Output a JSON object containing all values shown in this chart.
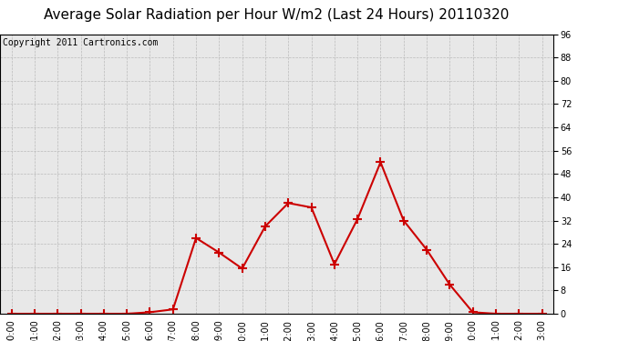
{
  "title": "Average Solar Radiation per Hour W/m2 (Last 24 Hours) 20110320",
  "copyright_text": "Copyright 2011 Cartronics.com",
  "hours": [
    "00:00",
    "01:00",
    "02:00",
    "03:00",
    "04:00",
    "05:00",
    "06:00",
    "07:00",
    "08:00",
    "09:00",
    "10:00",
    "11:00",
    "12:00",
    "13:00",
    "14:00",
    "15:00",
    "16:00",
    "17:00",
    "18:00",
    "19:00",
    "20:00",
    "21:00",
    "22:00",
    "23:00"
  ],
  "values": [
    0.0,
    0.0,
    0.0,
    0.0,
    0.0,
    0.0,
    0.5,
    1.5,
    26.0,
    21.0,
    15.5,
    30.0,
    38.0,
    36.5,
    17.0,
    32.5,
    52.0,
    32.0,
    22.0,
    10.0,
    0.5,
    0.0,
    0.0,
    0.0
  ],
  "ylim": [
    0.0,
    96.0
  ],
  "yticks": [
    0.0,
    8.0,
    16.0,
    24.0,
    32.0,
    40.0,
    48.0,
    56.0,
    64.0,
    72.0,
    80.0,
    88.0,
    96.0
  ],
  "line_color": "#cc0000",
  "marker": "+",
  "marker_size": 7,
  "marker_lw": 1.5,
  "line_width": 1.5,
  "bg_color": "#ffffff",
  "plot_bg_color": "#e8e8e8",
  "grid_color": "#bbbbbb",
  "title_fontsize": 11,
  "copyright_fontsize": 7,
  "tick_fontsize": 7,
  "border_color": "#000000"
}
